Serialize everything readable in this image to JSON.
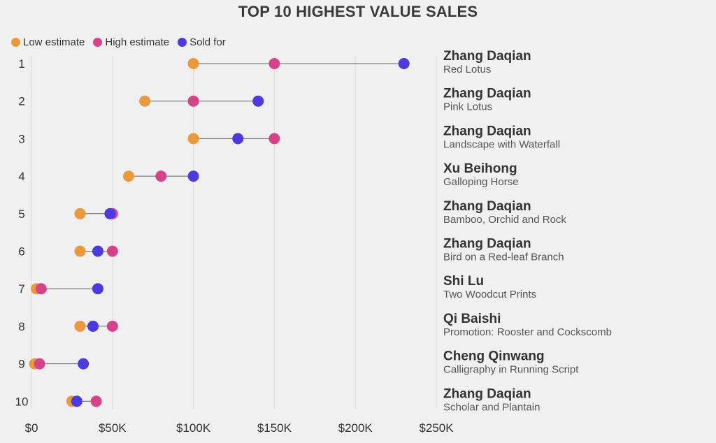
{
  "chart_data": {
    "type": "dot-range",
    "title": "TOP 10 HIGHEST VALUE SALES",
    "legend": [
      {
        "name": "Low estimate",
        "color": "#ea9a3a"
      },
      {
        "name": "High estimate",
        "color": "#d6438a"
      },
      {
        "name": "Sold for",
        "color": "#4a3ae0"
      }
    ],
    "legend_position": "top-left",
    "xlim": [
      0,
      250000
    ],
    "x_ticks": [
      {
        "value": 0,
        "label": "$0"
      },
      {
        "value": 50000,
        "label": "$50K"
      },
      {
        "value": 100000,
        "label": "$100K"
      },
      {
        "value": 150000,
        "label": "$150K"
      },
      {
        "value": 200000,
        "label": "$200K"
      },
      {
        "value": 250000,
        "label": "$250K"
      }
    ],
    "grid": true,
    "rows": [
      {
        "rank": "1",
        "artist": "Zhang Daqian",
        "work": "Red Lotus",
        "low": 100000,
        "high": 150000,
        "sold": 230000
      },
      {
        "rank": "2",
        "artist": "Zhang Daqian",
        "work": "Pink Lotus",
        "low": 70000,
        "high": 100000,
        "sold": 140000
      },
      {
        "rank": "3",
        "artist": "Zhang Daqian",
        "work": "Landscape with Waterfall",
        "low": 100000,
        "high": 150000,
        "sold": 127500
      },
      {
        "rank": "4",
        "artist": "Xu Beihong",
        "work": "Galloping Horse",
        "low": 60000,
        "high": 80000,
        "sold": 100000
      },
      {
        "rank": "5",
        "artist": "Zhang Daqian",
        "work": "Bamboo, Orchid and Rock",
        "low": 30000,
        "high": 50000,
        "sold": 48500
      },
      {
        "rank": "6",
        "artist": "Zhang Daqian",
        "work": "Bird on a Red-leaf Branch",
        "low": 30000,
        "high": 50000,
        "sold": 41000
      },
      {
        "rank": "7",
        "artist": "Shi Lu",
        "work": "Two Woodcut Prints",
        "low": 3000,
        "high": 6000,
        "sold": 41000
      },
      {
        "rank": "8",
        "artist": "Qi Baishi",
        "work": "Promotion: Rooster and Cockscomb",
        "low": 30000,
        "high": 50000,
        "sold": 38000
      },
      {
        "rank": "9",
        "artist": "Cheng Qinwang",
        "work": "Calligraphy in Running Script",
        "low": 2000,
        "high": 5000,
        "sold": 32000
      },
      {
        "rank": "10",
        "artist": "Zhang Daqian",
        "work": "Scholar and Plantain",
        "low": 25000,
        "high": 40000,
        "sold": 28000
      }
    ]
  }
}
